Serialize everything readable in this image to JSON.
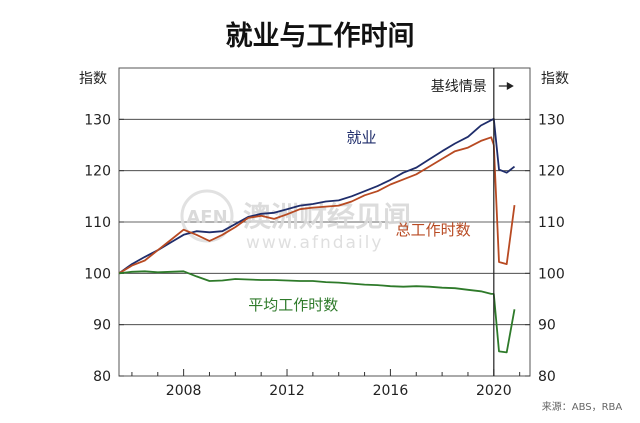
{
  "chart_data": {
    "type": "line",
    "title": "就业与工作时间",
    "ylabel_left": "指数",
    "ylabel_right": "指数",
    "ylim": [
      80,
      140
    ],
    "xlim": [
      2005.5,
      2021.4
    ],
    "x_ticks": [
      2008,
      2012,
      2016,
      2020
    ],
    "x_tick_labels": [
      "2008",
      "2012",
      "2016",
      "2020"
    ],
    "y_ticks": [
      80,
      90,
      100,
      110,
      120,
      130
    ],
    "y_tick_labels": [
      "80",
      "90",
      "100",
      "110",
      "120",
      "130"
    ],
    "grid": true,
    "baseline_marker": {
      "label": "基线情景",
      "x": 2020.0
    },
    "series": [
      {
        "name": "就业",
        "color": "#1f2d6b",
        "x": [
          2005.5,
          2006.0,
          2006.5,
          2007.0,
          2007.5,
          2008.0,
          2008.5,
          2009.0,
          2009.5,
          2010.0,
          2010.5,
          2011.0,
          2011.5,
          2012.0,
          2012.5,
          2013.0,
          2013.5,
          2014.0,
          2014.5,
          2015.0,
          2015.5,
          2016.0,
          2016.5,
          2017.0,
          2017.5,
          2018.0,
          2018.5,
          2019.0,
          2019.5,
          2020.0,
          2020.2,
          2020.5,
          2020.8
        ],
        "y": [
          100,
          101.8,
          103.2,
          104.5,
          106.0,
          107.5,
          108.2,
          108.0,
          108.2,
          109.6,
          111.0,
          111.6,
          111.8,
          112.5,
          113.2,
          113.5,
          114.0,
          114.2,
          115.0,
          116.0,
          117.0,
          118.2,
          119.6,
          120.6,
          122.2,
          123.8,
          125.3,
          126.6,
          128.8,
          130.1,
          120.2,
          119.6,
          120.8
        ]
      },
      {
        "name": "总工作时数",
        "color": "#b84a22",
        "x": [
          2005.5,
          2006.0,
          2006.5,
          2007.0,
          2007.5,
          2008.0,
          2008.5,
          2009.0,
          2009.5,
          2010.0,
          2010.5,
          2011.0,
          2011.5,
          2012.0,
          2012.5,
          2013.0,
          2013.5,
          2014.0,
          2014.5,
          2015.0,
          2015.5,
          2016.0,
          2016.5,
          2017.0,
          2017.5,
          2018.0,
          2018.5,
          2019.0,
          2019.5,
          2019.9,
          2020.0,
          2020.2,
          2020.5,
          2020.8
        ],
        "y": [
          100,
          101.5,
          102.5,
          104.5,
          106.5,
          108.5,
          107.5,
          106.3,
          107.5,
          109.0,
          110.8,
          111.2,
          110.6,
          111.5,
          112.5,
          112.8,
          113.0,
          113.2,
          114.0,
          115.2,
          116.0,
          117.3,
          118.3,
          119.3,
          120.8,
          122.3,
          123.8,
          124.5,
          125.8,
          126.5,
          125.0,
          102.2,
          101.8,
          113.3
        ]
      },
      {
        "name": "平均工作时数",
        "color": "#2e7a2a",
        "x": [
          2005.5,
          2006.0,
          2006.5,
          2007.0,
          2007.5,
          2008.0,
          2008.5,
          2009.0,
          2009.5,
          2010.0,
          2010.5,
          2011.0,
          2011.5,
          2012.0,
          2012.5,
          2013.0,
          2013.5,
          2014.0,
          2014.5,
          2015.0,
          2015.5,
          2016.0,
          2016.5,
          2017.0,
          2017.5,
          2018.0,
          2018.5,
          2019.0,
          2019.5,
          2019.9,
          2020.0,
          2020.2,
          2020.5,
          2020.8
        ],
        "y": [
          100,
          100.3,
          100.4,
          100.2,
          100.3,
          100.4,
          99.4,
          98.5,
          98.6,
          98.9,
          98.8,
          98.7,
          98.7,
          98.6,
          98.5,
          98.5,
          98.3,
          98.2,
          98.0,
          97.8,
          97.7,
          97.5,
          97.4,
          97.5,
          97.4,
          97.2,
          97.1,
          96.8,
          96.5,
          96.0,
          96.0,
          84.8,
          84.6,
          93.0
        ]
      }
    ],
    "annotations": [
      {
        "text": "就业",
        "series": "就业"
      },
      {
        "text": "总工作时数",
        "series": "总工作时数"
      },
      {
        "text": "平均工作时数",
        "series": "平均工作时数"
      }
    ]
  },
  "watermark": {
    "logo": "AFN",
    "text": "澳洲财经见闻",
    "url": "www.afndaily"
  },
  "source": "来源：ABS，RBA"
}
